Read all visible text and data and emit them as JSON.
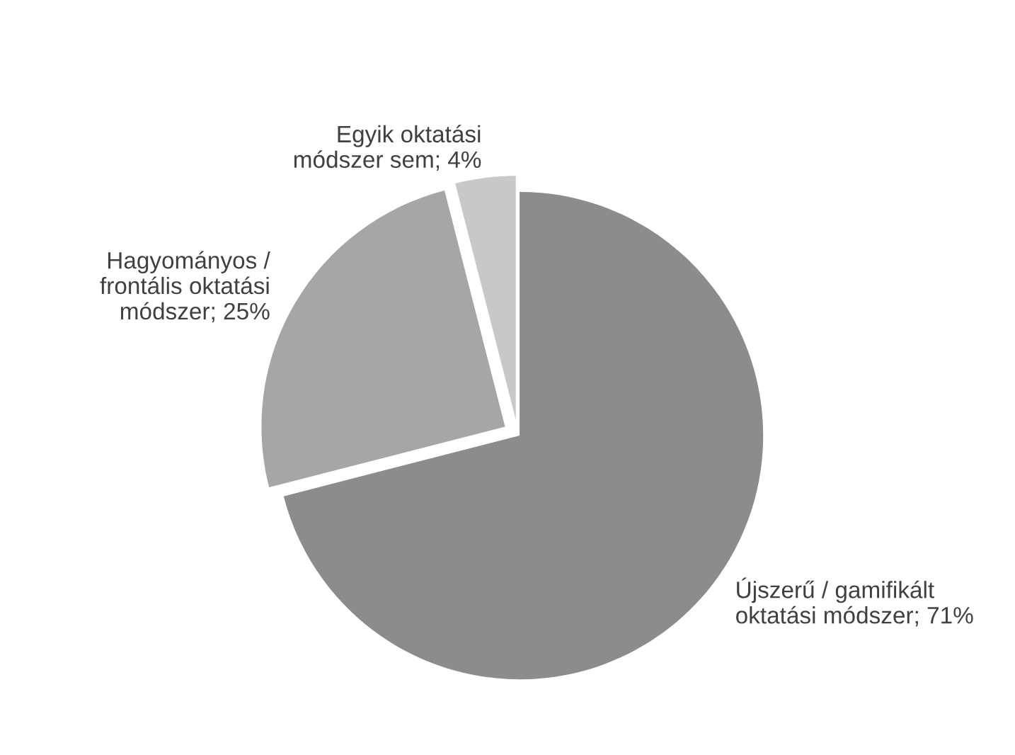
{
  "chart_data": {
    "type": "pie",
    "categories": [
      "Újszerű / gamifikált\noktatási módszer",
      "Hagyományos /\nfrontális oktatási\nmódszer",
      "Egyik oktatási\nmódszer sem"
    ],
    "values": [
      71,
      25,
      4
    ],
    "value_labels": [
      "71%",
      "25%",
      "4%"
    ],
    "colors": [
      "#8c8c8c",
      "#a6a6a6",
      "#c8c8c8"
    ]
  }
}
